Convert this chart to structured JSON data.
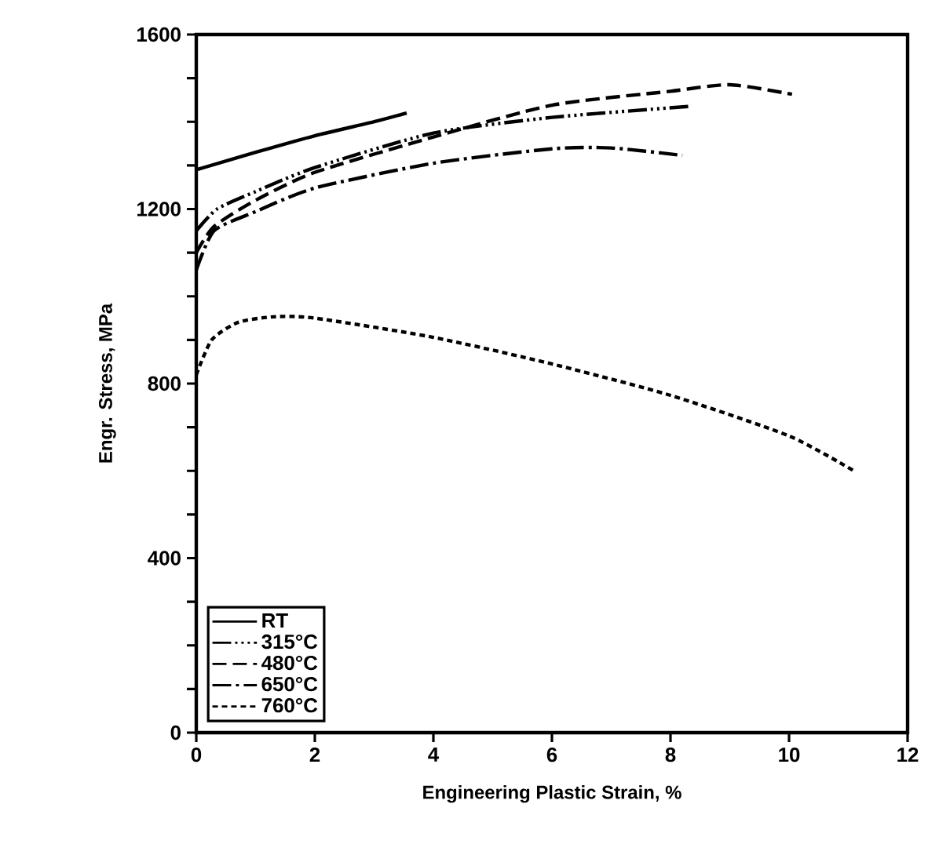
{
  "chart_data": {
    "type": "line",
    "xlabel": "Engineering Plastic Strain, %",
    "ylabel": "Engr. Stress, MPa",
    "xlim": [
      0,
      12
    ],
    "xticks": [
      0,
      2,
      4,
      6,
      8,
      10,
      12
    ],
    "ylim": [
      0,
      1600
    ],
    "yticks": [
      0,
      {
        "value": 100,
        "label": null
      },
      {
        "value": 200,
        "label": null
      },
      {
        "value": 300,
        "label": null
      },
      400,
      {
        "value": 500,
        "label": null
      },
      {
        "value": 600,
        "label": null
      },
      {
        "value": 700,
        "label": null
      },
      800,
      {
        "value": 900,
        "label": null
      },
      {
        "value": 1000,
        "label": null
      },
      {
        "value": 1100,
        "label": null
      },
      1200,
      {
        "value": 1300,
        "label": null
      },
      {
        "value": 1400,
        "label": null
      },
      {
        "value": 1500,
        "label": null
      },
      1600
    ],
    "legend": "bottom left",
    "grid": false,
    "series": [
      {
        "name": "RT",
        "color": "#000000",
        "line_style": "solid",
        "x": [
          0,
          1,
          2,
          3,
          3.55
        ],
        "values": [
          1290,
          1330,
          1368,
          1400,
          1420
        ]
      },
      {
        "name": "315°C",
        "color": "#000000",
        "line_style": "dashdotdotted",
        "x": [
          0,
          0.35,
          1,
          2,
          4,
          6,
          8.3
        ],
        "values": [
          1150,
          1200,
          1240,
          1295,
          1374,
          1410,
          1435
        ]
      },
      {
        "name": "480°C",
        "color": "#000000",
        "line_style": "dashed",
        "x": [
          0,
          0.3,
          1,
          2,
          4,
          6,
          8,
          9,
          10.05
        ],
        "values": [
          1100,
          1160,
          1220,
          1284,
          1365,
          1438,
          1470,
          1485,
          1463
        ]
      },
      {
        "name": "650°C",
        "color": "#000000",
        "line_style": "dashdotted",
        "x": [
          0,
          0.3,
          1,
          2,
          4,
          6,
          7,
          8.2
        ],
        "values": [
          1060,
          1150,
          1194,
          1248,
          1305,
          1338,
          1340,
          1323
        ]
      },
      {
        "name": "760°C",
        "color": "#000000",
        "line_style": "dotted",
        "x": [
          0,
          0.26,
          0.7,
          1.3,
          2,
          4,
          6,
          8,
          10,
          11.13
        ],
        "values": [
          820,
          900,
          940,
          953,
          950,
          906,
          845,
          773,
          680,
          597
        ]
      }
    ]
  }
}
